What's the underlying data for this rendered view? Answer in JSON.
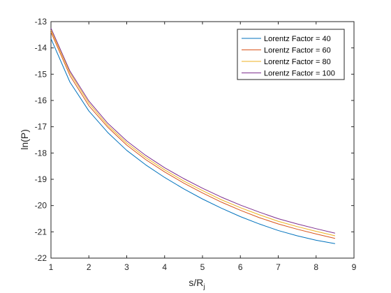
{
  "chart_data": {
    "type": "line",
    "xlabel_main": "s/R",
    "xlabel_sub": "j",
    "ylabel": "ln(P)",
    "xlim": [
      1,
      9
    ],
    "ylim": [
      -22,
      -13
    ],
    "xticks": [
      1,
      2,
      3,
      4,
      5,
      6,
      7,
      8,
      9
    ],
    "yticks": [
      -22,
      -21,
      -20,
      -19,
      -18,
      -17,
      -16,
      -15,
      -14,
      -13
    ],
    "grid": false,
    "legend_position": "top-right",
    "x": [
      1.0,
      1.5,
      2.0,
      2.5,
      3.0,
      3.5,
      4.0,
      4.5,
      5.0,
      5.5,
      6.0,
      6.5,
      7.0,
      7.5,
      8.0,
      8.5
    ],
    "series": [
      {
        "name": "Lorentz Factor = 40",
        "color": "#0072BD",
        "values": [
          -13.65,
          -15.3,
          -16.4,
          -17.22,
          -17.9,
          -18.45,
          -18.93,
          -19.36,
          -19.75,
          -20.1,
          -20.42,
          -20.7,
          -20.95,
          -21.15,
          -21.32,
          -21.45
        ]
      },
      {
        "name": "Lorentz Factor = 60",
        "color": "#D95319",
        "values": [
          -13.4,
          -15.05,
          -16.2,
          -17.02,
          -17.7,
          -18.25,
          -18.72,
          -19.14,
          -19.52,
          -19.87,
          -20.18,
          -20.46,
          -20.7,
          -20.9,
          -21.08,
          -21.25
        ]
      },
      {
        "name": "Lorentz Factor = 80",
        "color": "#EDB120",
        "values": [
          -13.32,
          -14.95,
          -16.1,
          -16.95,
          -17.62,
          -18.17,
          -18.64,
          -19.06,
          -19.43,
          -19.78,
          -20.08,
          -20.35,
          -20.6,
          -20.8,
          -20.98,
          -21.15
        ]
      },
      {
        "name": "Lorentz Factor = 100",
        "color": "#7E2F8E",
        "values": [
          -13.25,
          -14.88,
          -16.02,
          -16.87,
          -17.54,
          -18.09,
          -18.56,
          -18.97,
          -19.34,
          -19.68,
          -19.98,
          -20.25,
          -20.5,
          -20.7,
          -20.88,
          -21.05
        ]
      }
    ]
  }
}
